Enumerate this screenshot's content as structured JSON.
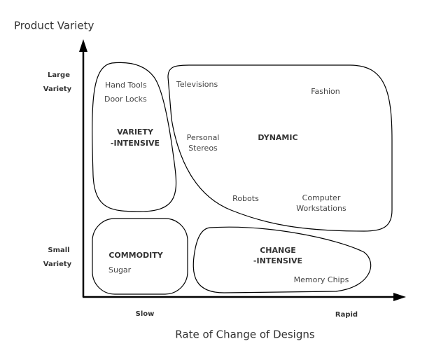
{
  "axes": {
    "y_title": "Product Variety",
    "x_title": "Rate of Change of Designs",
    "y_labels": [
      "Large",
      "Variety",
      "Small",
      "Variety"
    ],
    "x_labels": [
      "Slow",
      "Rapid"
    ]
  },
  "regions": [
    {
      "label": [
        "VARIETY",
        "-INTENSIVE"
      ],
      "items": [
        "Hand Tools",
        "Door Locks"
      ]
    },
    {
      "label": [
        "DYNAMIC"
      ],
      "items": [
        "Televisions",
        "Fashion",
        "Personal",
        "Stereos",
        "Robots",
        "Computer",
        "Workstations"
      ]
    },
    {
      "label": [
        "COMMODITY"
      ],
      "items": [
        "Sugar"
      ]
    },
    {
      "label": [
        "CHANGE",
        "-INTENSIVE"
      ],
      "items": [
        "Memory Chips"
      ]
    }
  ]
}
